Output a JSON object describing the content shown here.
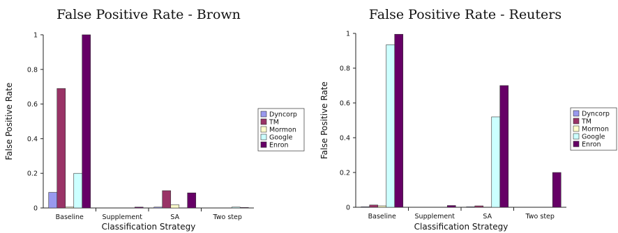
{
  "chart_data": [
    {
      "type": "bar",
      "title": "False Positive Rate - Brown",
      "xlabel": "Classification Strategy",
      "ylabel": "False Positive Rate",
      "ylim": [
        0,
        1
      ],
      "yticks": [
        "0",
        "0.2",
        "0.4",
        "0.6",
        "0.8",
        "1"
      ],
      "categories": [
        "Baseline",
        "Supplement",
        "SA",
        "Two step"
      ],
      "legend_position": "right",
      "series": [
        {
          "name": "Dyncorp",
          "color": "#9999ee",
          "values": [
            0.09,
            0.0,
            0.005,
            0.0
          ]
        },
        {
          "name": "TM",
          "color": "#993366",
          "values": [
            0.69,
            0.0,
            0.1,
            0.0
          ]
        },
        {
          "name": "Mormon",
          "color": "#ffffcc",
          "values": [
            0.005,
            0.0,
            0.018,
            0.0
          ]
        },
        {
          "name": "Google",
          "color": "#ccffff",
          "values": [
            0.2,
            0.0,
            0.0,
            0.005
          ]
        },
        {
          "name": "Enron",
          "color": "#660066",
          "values": [
            1.0,
            0.005,
            0.087,
            0.003
          ]
        }
      ]
    },
    {
      "type": "bar",
      "title": "False Positive Rate - Reuters",
      "xlabel": "Classification Strategy",
      "ylabel": "False Positive Rate",
      "ylim": [
        0,
        1
      ],
      "yticks": [
        "0",
        "0.2",
        "0.4",
        "0.6",
        "0.8",
        "1"
      ],
      "categories": [
        "Baseline",
        "Supplement",
        "SA",
        "Two step"
      ],
      "legend_position": "right",
      "series": [
        {
          "name": "Dyncorp",
          "color": "#9999ee",
          "values": [
            0.003,
            0.0,
            0.003,
            0.0
          ]
        },
        {
          "name": "TM",
          "color": "#993366",
          "values": [
            0.013,
            0.0,
            0.008,
            0.0
          ]
        },
        {
          "name": "Mormon",
          "color": "#ffffcc",
          "values": [
            0.008,
            0.0,
            0.0,
            0.0
          ]
        },
        {
          "name": "Google",
          "color": "#ccffff",
          "values": [
            0.935,
            0.0,
            0.52,
            0.0
          ]
        },
        {
          "name": "Enron",
          "color": "#660066",
          "values": [
            0.995,
            0.01,
            0.7,
            0.2
          ]
        }
      ]
    }
  ]
}
